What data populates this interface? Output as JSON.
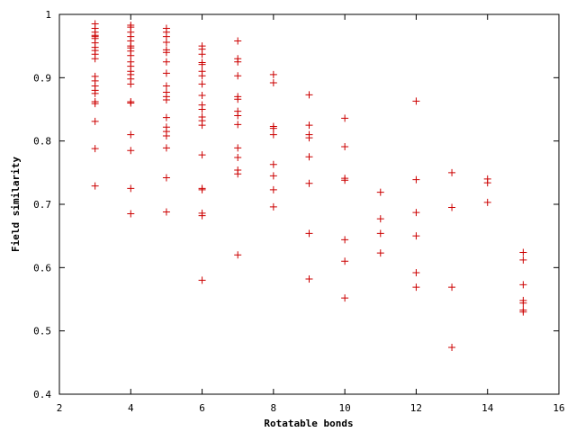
{
  "chart_data": {
    "type": "scatter",
    "title": "",
    "xlabel": "Rotatable bonds",
    "ylabel": "Field similarity",
    "xlim": [
      2,
      16
    ],
    "ylim": [
      0.4,
      1.0
    ],
    "xticks": [
      "2",
      "4",
      "6",
      "8",
      "10",
      "12",
      "14",
      "16"
    ],
    "yticks": [
      "0.4",
      "0.5",
      "0.6",
      "0.7",
      "0.8",
      "0.9",
      "1"
    ],
    "grid": false,
    "legend": "none",
    "marker": "+",
    "color": "#cc0000",
    "series": [
      {
        "points": [
          [
            3,
            0.985
          ],
          [
            3,
            0.978
          ],
          [
            3,
            0.972
          ],
          [
            3,
            0.967
          ],
          [
            3,
            0.965
          ],
          [
            3,
            0.962
          ],
          [
            3,
            0.955
          ],
          [
            3,
            0.948
          ],
          [
            3,
            0.943
          ],
          [
            3,
            0.937
          ],
          [
            3,
            0.93
          ],
          [
            3,
            0.902
          ],
          [
            3,
            0.895
          ],
          [
            3,
            0.887
          ],
          [
            3,
            0.88
          ],
          [
            3,
            0.875
          ],
          [
            3,
            0.862
          ],
          [
            3,
            0.859
          ],
          [
            3,
            0.831
          ],
          [
            3,
            0.788
          ],
          [
            3,
            0.729
          ],
          [
            4,
            0.983
          ],
          [
            4,
            0.98
          ],
          [
            4,
            0.972
          ],
          [
            4,
            0.965
          ],
          [
            4,
            0.958
          ],
          [
            4,
            0.95
          ],
          [
            4,
            0.947
          ],
          [
            4,
            0.942
          ],
          [
            4,
            0.935
          ],
          [
            4,
            0.925
          ],
          [
            4,
            0.918
          ],
          [
            4,
            0.91
          ],
          [
            4,
            0.905
          ],
          [
            4,
            0.898
          ],
          [
            4,
            0.89
          ],
          [
            4,
            0.862
          ],
          [
            4,
            0.86
          ],
          [
            4,
            0.81
          ],
          [
            4,
            0.785
          ],
          [
            4,
            0.725
          ],
          [
            4,
            0.685
          ],
          [
            5,
            0.978
          ],
          [
            5,
            0.972
          ],
          [
            5,
            0.965
          ],
          [
            5,
            0.956
          ],
          [
            5,
            0.944
          ],
          [
            5,
            0.94
          ],
          [
            5,
            0.925
          ],
          [
            5,
            0.907
          ],
          [
            5,
            0.887
          ],
          [
            5,
            0.877
          ],
          [
            5,
            0.87
          ],
          [
            5,
            0.865
          ],
          [
            5,
            0.837
          ],
          [
            5,
            0.822
          ],
          [
            5,
            0.815
          ],
          [
            5,
            0.808
          ],
          [
            5,
            0.789
          ],
          [
            5,
            0.742
          ],
          [
            5,
            0.688
          ],
          [
            6,
            0.95
          ],
          [
            6,
            0.945
          ],
          [
            6,
            0.937
          ],
          [
            6,
            0.924
          ],
          [
            6,
            0.921
          ],
          [
            6,
            0.91
          ],
          [
            6,
            0.903
          ],
          [
            6,
            0.89
          ],
          [
            6,
            0.872
          ],
          [
            6,
            0.857
          ],
          [
            6,
            0.85
          ],
          [
            6,
            0.838
          ],
          [
            6,
            0.832
          ],
          [
            6,
            0.825
          ],
          [
            6,
            0.778
          ],
          [
            6,
            0.725
          ],
          [
            6,
            0.723
          ],
          [
            6,
            0.686
          ],
          [
            6,
            0.682
          ],
          [
            6,
            0.58
          ],
          [
            7,
            0.958
          ],
          [
            7,
            0.93
          ],
          [
            7,
            0.925
          ],
          [
            7,
            0.903
          ],
          [
            7,
            0.87
          ],
          [
            7,
            0.866
          ],
          [
            7,
            0.847
          ],
          [
            7,
            0.84
          ],
          [
            7,
            0.826
          ],
          [
            7,
            0.789
          ],
          [
            7,
            0.774
          ],
          [
            7,
            0.754
          ],
          [
            7,
            0.748
          ],
          [
            7,
            0.62
          ],
          [
            8,
            0.905
          ],
          [
            8,
            0.892
          ],
          [
            8,
            0.823
          ],
          [
            8,
            0.82
          ],
          [
            8,
            0.81
          ],
          [
            8,
            0.763
          ],
          [
            8,
            0.745
          ],
          [
            8,
            0.723
          ],
          [
            8,
            0.696
          ],
          [
            9,
            0.873
          ],
          [
            9,
            0.825
          ],
          [
            9,
            0.81
          ],
          [
            9,
            0.805
          ],
          [
            9,
            0.775
          ],
          [
            9,
            0.733
          ],
          [
            9,
            0.654
          ],
          [
            9,
            0.582
          ],
          [
            10,
            0.836
          ],
          [
            10,
            0.791
          ],
          [
            10,
            0.741
          ],
          [
            10,
            0.738
          ],
          [
            10,
            0.644
          ],
          [
            10,
            0.61
          ],
          [
            10,
            0.552
          ],
          [
            11,
            0.719
          ],
          [
            11,
            0.677
          ],
          [
            11,
            0.654
          ],
          [
            11,
            0.623
          ],
          [
            12,
            0.863
          ],
          [
            12,
            0.739
          ],
          [
            12,
            0.687
          ],
          [
            12,
            0.65
          ],
          [
            12,
            0.592
          ],
          [
            12,
            0.569
          ],
          [
            13,
            0.75
          ],
          [
            13,
            0.695
          ],
          [
            13,
            0.569
          ],
          [
            13,
            0.474
          ],
          [
            14,
            0.74
          ],
          [
            14,
            0.734
          ],
          [
            14,
            0.703
          ],
          [
            15,
            0.624
          ],
          [
            15,
            0.612
          ],
          [
            15,
            0.573
          ],
          [
            15,
            0.548
          ],
          [
            15,
            0.544
          ],
          [
            15,
            0.533
          ],
          [
            15,
            0.53
          ]
        ]
      }
    ]
  }
}
